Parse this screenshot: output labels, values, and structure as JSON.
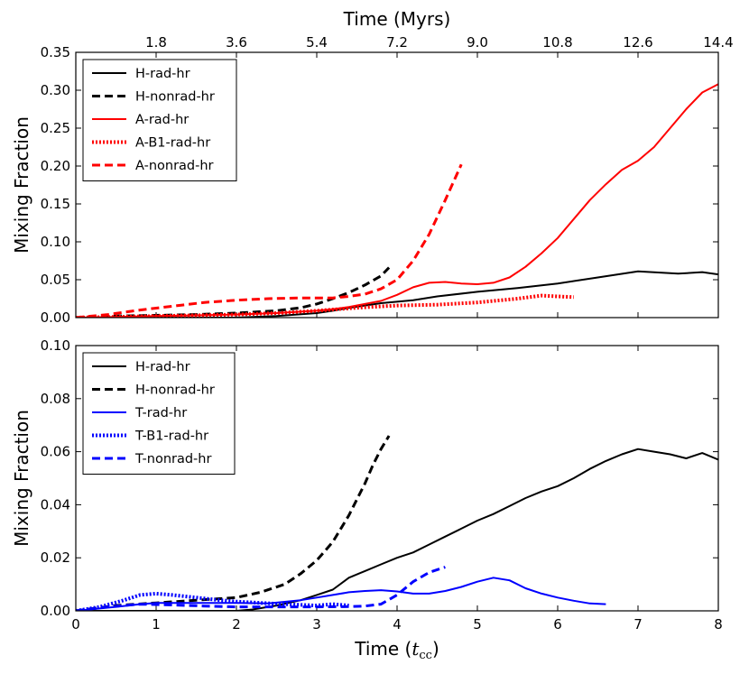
{
  "chart_data": [
    {
      "type": "line",
      "panel": "top",
      "title": "",
      "xlabel_top": "Time (Myrs)",
      "xlabel": "Time (t_cc)",
      "ylabel": "Mixing Fraction",
      "xlim": [
        0,
        8
      ],
      "ylim": [
        0,
        0.35
      ],
      "yticks": [
        "0.00",
        "0.05",
        "0.10",
        "0.15",
        "0.20",
        "0.25",
        "0.30",
        "0.35"
      ],
      "top_ticks": [
        "1.8",
        "3.6",
        "5.4",
        "7.2",
        "9.0",
        "10.8",
        "12.6",
        "14.4"
      ],
      "legend_position": "upper-left",
      "series": [
        {
          "name": "H-rad-hr",
          "color": "#000000",
          "style": "solid",
          "x": [
            0,
            0.5,
            1,
            1.5,
            2,
            2.5,
            3,
            3.2,
            3.4,
            3.6,
            3.8,
            4,
            4.2,
            4.5,
            5,
            5.5,
            6,
            6.5,
            7,
            7.5,
            7.8,
            8
          ],
          "y": [
            0,
            0,
            0,
            0,
            0,
            0.002,
            0.006,
            0.009,
            0.013,
            0.016,
            0.019,
            0.021,
            0.023,
            0.028,
            0.034,
            0.039,
            0.045,
            0.053,
            0.061,
            0.058,
            0.06,
            0.057
          ]
        },
        {
          "name": "H-nonrad-hr",
          "color": "#000000",
          "style": "dashed",
          "x": [
            0,
            0.5,
            1,
            1.5,
            2,
            2.5,
            2.8,
            3,
            3.2,
            3.4,
            3.6,
            3.8,
            3.9
          ],
          "y": [
            0,
            0.002,
            0.003,
            0.004,
            0.006,
            0.009,
            0.013,
            0.018,
            0.025,
            0.033,
            0.043,
            0.055,
            0.066
          ]
        },
        {
          "name": "A-rad-hr",
          "color": "#ff0000",
          "style": "solid",
          "x": [
            0,
            0.5,
            1,
            1.5,
            2,
            2.5,
            3,
            3.2,
            3.4,
            3.6,
            3.8,
            4,
            4.2,
            4.4,
            4.6,
            4.8,
            5,
            5.2,
            5.4,
            5.6,
            5.8,
            6,
            6.2,
            6.4,
            6.6,
            6.8,
            7,
            7.2,
            7.4,
            7.6,
            7.8,
            8
          ],
          "y": [
            0,
            0.001,
            0.002,
            0.003,
            0.004,
            0.006,
            0.009,
            0.011,
            0.014,
            0.018,
            0.022,
            0.03,
            0.04,
            0.046,
            0.047,
            0.045,
            0.044,
            0.046,
            0.053,
            0.067,
            0.085,
            0.105,
            0.13,
            0.155,
            0.176,
            0.195,
            0.207,
            0.225,
            0.25,
            0.275,
            0.297,
            0.308
          ]
        },
        {
          "name": "A-B1-rad-hr",
          "color": "#ff0000",
          "style": "dotted",
          "x": [
            0,
            0.5,
            1,
            1.5,
            2,
            2.5,
            3,
            3.5,
            4,
            4.5,
            5,
            5.5,
            5.8,
            6,
            6.2
          ],
          "y": [
            0,
            0.001,
            0.002,
            0.003,
            0.004,
            0.006,
            0.009,
            0.013,
            0.016,
            0.017,
            0.02,
            0.025,
            0.029,
            0.028,
            0.027
          ]
        },
        {
          "name": "A-nonrad-hr",
          "color": "#ff0000",
          "style": "dashed",
          "x": [
            0,
            0.4,
            0.8,
            1.2,
            1.6,
            2,
            2.4,
            2.8,
            3,
            3.2,
            3.4,
            3.6,
            3.8,
            4,
            4.2,
            4.4,
            4.6,
            4.8
          ],
          "y": [
            0,
            0.004,
            0.01,
            0.015,
            0.02,
            0.023,
            0.025,
            0.026,
            0.026,
            0.026,
            0.028,
            0.031,
            0.038,
            0.05,
            0.075,
            0.11,
            0.155,
            0.202
          ]
        }
      ]
    },
    {
      "type": "line",
      "panel": "bottom",
      "title": "",
      "xlabel": "Time (t_cc)",
      "xlabel_display": "Time (",
      "xlabel_italic": "t",
      "xlabel_sub": "cc",
      "xlabel_close": ")",
      "ylabel": "Mixing Fraction",
      "xlim": [
        0,
        8
      ],
      "ylim": [
        0,
        0.1
      ],
      "xticks": [
        "0",
        "1",
        "2",
        "3",
        "4",
        "5",
        "6",
        "7",
        "8"
      ],
      "yticks": [
        "0.00",
        "0.02",
        "0.04",
        "0.06",
        "0.08",
        "0.10"
      ],
      "legend_position": "upper-left",
      "series": [
        {
          "name": "H-rad-hr",
          "color": "#000000",
          "style": "solid",
          "x": [
            0,
            0.5,
            1,
            1.5,
            2,
            2.2,
            2.5,
            2.8,
            3,
            3.2,
            3.4,
            3.6,
            3.8,
            4,
            4.2,
            4.4,
            4.6,
            4.8,
            5,
            5.2,
            5.4,
            5.6,
            5.8,
            6,
            6.2,
            6.4,
            6.6,
            6.8,
            7,
            7.2,
            7.4,
            7.6,
            7.8,
            8
          ],
          "y": [
            0,
            0,
            0,
            0,
            0,
            0.0005,
            0.002,
            0.004,
            0.006,
            0.008,
            0.0125,
            0.015,
            0.0175,
            0.02,
            0.022,
            0.025,
            0.028,
            0.031,
            0.034,
            0.0365,
            0.0395,
            0.0425,
            0.045,
            0.047,
            0.05,
            0.0535,
            0.0565,
            0.059,
            0.061,
            0.06,
            0.059,
            0.0575,
            0.0595,
            0.057
          ]
        },
        {
          "name": "H-nonrad-hr",
          "color": "#000000",
          "style": "dashed",
          "x": [
            0,
            0.5,
            1,
            1.5,
            2,
            2.3,
            2.6,
            2.8,
            3,
            3.2,
            3.4,
            3.5,
            3.6,
            3.7,
            3.8,
            3.9
          ],
          "y": [
            0,
            0.002,
            0.003,
            0.004,
            0.005,
            0.007,
            0.01,
            0.014,
            0.019,
            0.026,
            0.036,
            0.042,
            0.048,
            0.055,
            0.061,
            0.066
          ]
        },
        {
          "name": "T-rad-hr",
          "color": "#0000ff",
          "style": "solid",
          "x": [
            0,
            0.5,
            0.8,
            1,
            1.3,
            1.6,
            2,
            2.4,
            2.8,
            3,
            3.2,
            3.4,
            3.6,
            3.8,
            4,
            4.2,
            4.4,
            4.6,
            4.8,
            5,
            5.2,
            5.4,
            5.6,
            5.8,
            6,
            6.2,
            6.4,
            6.6
          ],
          "y": [
            0,
            0.0015,
            0.0025,
            0.003,
            0.003,
            0.003,
            0.003,
            0.0028,
            0.004,
            0.005,
            0.006,
            0.007,
            0.0075,
            0.0078,
            0.0073,
            0.0065,
            0.0065,
            0.0075,
            0.009,
            0.011,
            0.0125,
            0.0115,
            0.0085,
            0.0065,
            0.005,
            0.0038,
            0.0028,
            0.0025
          ]
        },
        {
          "name": "T-B1-rad-hr",
          "color": "#0000ff",
          "style": "dotted",
          "x": [
            0,
            0.3,
            0.6,
            0.8,
            1,
            1.2,
            1.5,
            1.8,
            2,
            2.3,
            2.6,
            3,
            3.2,
            3.4
          ],
          "y": [
            0,
            0.0015,
            0.004,
            0.006,
            0.0065,
            0.006,
            0.005,
            0.004,
            0.0035,
            0.003,
            0.0025,
            0.002,
            0.0025,
            0.002
          ]
        },
        {
          "name": "T-nonrad-hr",
          "color": "#0000ff",
          "style": "dashed",
          "x": [
            0,
            0.4,
            0.8,
            1.2,
            1.6,
            2,
            2.5,
            3,
            3.4,
            3.6,
            3.8,
            4,
            4.2,
            4.4,
            4.6
          ],
          "y": [
            0,
            0.0015,
            0.0025,
            0.0022,
            0.0018,
            0.0015,
            0.0015,
            0.0015,
            0.0016,
            0.0018,
            0.0025,
            0.006,
            0.011,
            0.0145,
            0.0165
          ]
        }
      ]
    }
  ]
}
